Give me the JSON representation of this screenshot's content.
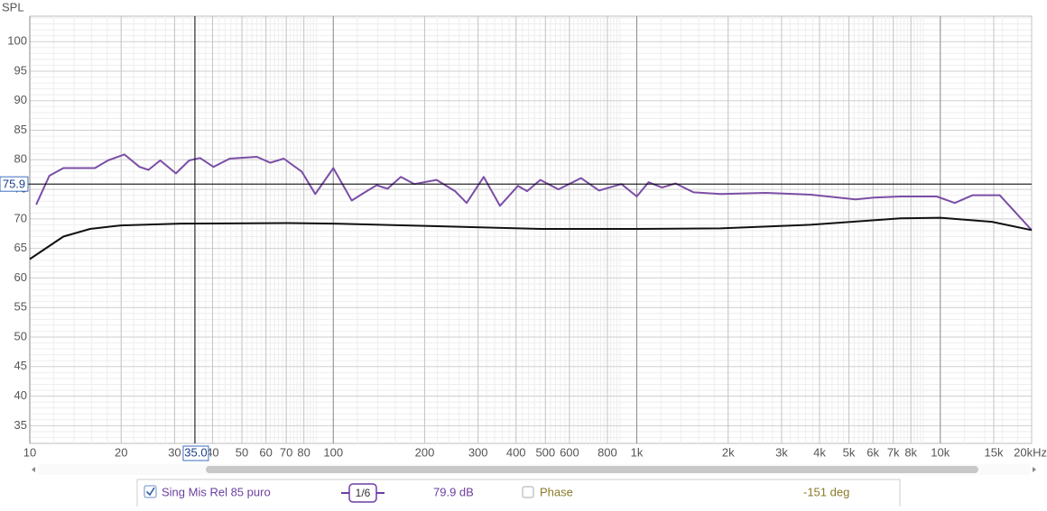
{
  "chart_data": {
    "type": "line",
    "y_label": "SPL",
    "xscale": "log",
    "xlim": [
      10,
      20000
    ],
    "ylim": [
      32,
      104.3
    ],
    "xticks": [
      10,
      20,
      30,
      40,
      50,
      60,
      70,
      80,
      100,
      200,
      300,
      400,
      500,
      600,
      800,
      {
        "value": 1000,
        "label": "1k"
      },
      {
        "value": 2000,
        "label": "2k"
      },
      {
        "value": 3000,
        "label": "3k"
      },
      {
        "value": 4000,
        "label": "4k"
      },
      {
        "value": 5000,
        "label": "5k"
      },
      {
        "value": 6000,
        "label": "6k"
      },
      {
        "value": 7000,
        "label": "7k"
      },
      {
        "value": 8000,
        "label": "8k"
      },
      {
        "value": 10000,
        "label": "10k"
      },
      {
        "value": 15000,
        "label": "15k"
      },
      {
        "value": 20000,
        "label": "20kHz"
      }
    ],
    "yticks": [
      35,
      40,
      45,
      50,
      55,
      60,
      65,
      70,
      75,
      80,
      85,
      90,
      95,
      100
    ],
    "grid": true,
    "minor_grid": true,
    "cursor": {
      "x": {
        "value": 35,
        "label": "35.0"
      },
      "y": 75.9
    },
    "series": [
      {
        "name": "Sing Mis Rel 85 puro",
        "color": "#7b4ea6",
        "x": [
          10.5,
          11.6,
          12.9,
          14.8,
          16.4,
          18.1,
          20.5,
          23.0,
          24.6,
          26.9,
          30.3,
          33.5,
          36.4,
          40.3,
          45.6,
          56.0,
          62.0,
          68.7,
          78.7,
          87.2,
          100,
          115,
          127,
          139,
          151,
          167,
          185,
          219,
          252,
          275,
          313,
          354,
          406,
          435,
          481,
          552,
          655,
          751,
          890,
          1000,
          1093,
          1211,
          1342,
          1538,
          1888,
          2657,
          3739,
          5260,
          6032,
          7403,
          9730,
          11160,
          12790,
          15700,
          20000
        ],
        "values": [
          72.4,
          77.3,
          78.6,
          78.6,
          78.6,
          79.9,
          80.9,
          78.8,
          78.3,
          79.9,
          77.7,
          79.9,
          80.3,
          78.8,
          80.2,
          80.5,
          79.5,
          80.2,
          78.0,
          74.2,
          78.6,
          73.1,
          74.5,
          75.7,
          75.1,
          77.1,
          75.9,
          76.6,
          74.7,
          72.7,
          77.1,
          72.2,
          75.6,
          74.7,
          76.6,
          75.0,
          76.9,
          74.8,
          75.9,
          73.8,
          76.2,
          75.3,
          76.0,
          74.5,
          74.2,
          74.4,
          74.1,
          73.3,
          73.6,
          73.8,
          73.8,
          72.7,
          74.0,
          74.0,
          68.1
        ]
      },
      {
        "color": "#111111",
        "x": [
          10,
          12.9,
          15.8,
          20,
          31.3,
          71,
          100,
          243,
          482,
          1000,
          1888,
          3739,
          7403,
          10000,
          14800,
          20000
        ],
        "values": [
          63.2,
          67.0,
          68.3,
          68.9,
          69.2,
          69.3,
          69.2,
          68.7,
          68.3,
          68.3,
          68.4,
          69.0,
          70.1,
          70.2,
          69.5,
          68.1
        ]
      }
    ]
  },
  "panel": {
    "smoothing": "1/6",
    "level": "79.9 dB",
    "phase_label": "Phase",
    "phase_value": "-151 deg"
  }
}
